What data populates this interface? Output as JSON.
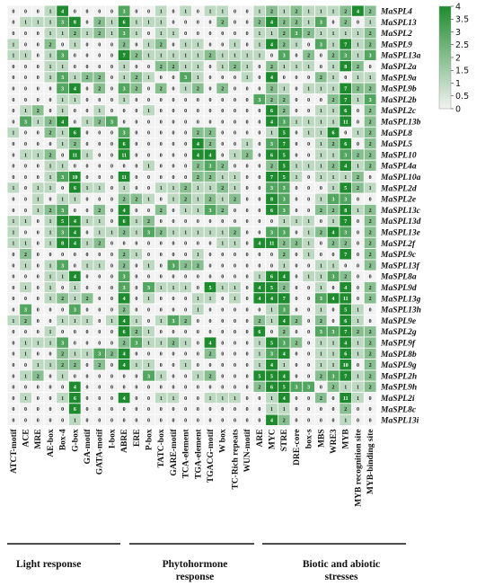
{
  "chart_data": {
    "type": "heatmap",
    "title": "",
    "rows": [
      "MaSPL4",
      "MaSPL13",
      "MaSPL2",
      "MaSPL9",
      "MaSPL13a",
      "MaSPL2a",
      "MaSPL9a",
      "MaSPL9b",
      "MaSPL2b",
      "MaSPL2c",
      "MaSPL13b",
      "MaSPL8",
      "MaSPL5",
      "MaSPL10",
      "MaSPL4a",
      "MaSPL10a",
      "MaSPL2d",
      "MaSPL2e",
      "MaSPL13c",
      "MaSPL13d",
      "MaSPL13e",
      "MaSPL2f",
      "MaSPL9c",
      "MaSPL13f",
      "MaSPL8a",
      "MaSPL9d",
      "MaSPL13g",
      "MaSPL13h",
      "MaSPL9e",
      "MaSPL2g",
      "MaSPL9f",
      "MaSPL8b",
      "MaSPL9g",
      "MaSPL2h",
      "MaSPL9h",
      "MaSPL2i",
      "MaSPL8c",
      "MaSPL13i"
    ],
    "columns": [
      "ATCT-motif",
      "ACE",
      "MRE",
      "AE-box",
      "Box-4",
      "G-box",
      "GA-motif",
      "GATA-motif",
      "I-box",
      "ABRE",
      "ERE",
      "P-box",
      "TATC-box",
      "GARE-motif",
      "TCA-element",
      "TGA-element",
      "TGACG-motif",
      "W box",
      "TC-Rich repeats",
      "WUN-motif",
      "ARE",
      "MYC",
      "STRE",
      "DRE-core",
      "box-s",
      "MBS",
      "WRE3",
      "MYB",
      "MYB recognition site",
      "MYB-binding site"
    ],
    "values": [
      [
        0,
        0,
        0,
        1,
        4,
        0,
        0,
        0,
        0,
        3,
        0,
        0,
        1,
        0,
        1,
        0,
        1,
        1,
        0,
        0,
        1,
        2,
        1,
        2,
        1,
        1,
        1,
        2,
        4,
        2
      ],
      [
        0,
        1,
        1,
        1,
        3,
        8,
        0,
        2,
        1,
        6,
        1,
        1,
        1,
        0,
        0,
        0,
        0,
        2,
        0,
        0,
        2,
        4,
        2,
        2,
        1,
        3,
        0,
        2,
        0,
        1
      ],
      [
        0,
        0,
        0,
        1,
        1,
        2,
        1,
        2,
        1,
        3,
        1,
        0,
        1,
        1,
        0,
        0,
        0,
        0,
        0,
        0,
        1,
        1,
        2,
        3,
        2,
        1,
        1,
        1,
        1,
        2
      ],
      [
        1,
        0,
        0,
        2,
        0,
        1,
        0,
        0,
        0,
        2,
        0,
        1,
        2,
        0,
        1,
        1,
        0,
        0,
        1,
        0,
        1,
        4,
        2,
        1,
        0,
        3,
        1,
        7,
        1,
        2
      ],
      [
        1,
        1,
        0,
        1,
        3,
        0,
        0,
        0,
        0,
        7,
        2,
        1,
        1,
        1,
        1,
        1,
        2,
        1,
        1,
        1,
        1,
        0,
        3,
        0,
        2,
        0,
        2,
        3,
        1,
        3
      ],
      [
        0,
        0,
        0,
        1,
        1,
        0,
        0,
        0,
        0,
        1,
        0,
        0,
        2,
        2,
        1,
        1,
        0,
        1,
        2,
        1,
        0,
        2,
        1,
        1,
        1,
        0,
        1,
        8,
        2,
        0
      ],
      [
        0,
        0,
        0,
        1,
        3,
        1,
        2,
        2,
        0,
        1,
        2,
        1,
        0,
        0,
        3,
        1,
        0,
        0,
        0,
        1,
        0,
        4,
        0,
        0,
        0,
        2,
        1,
        0,
        1,
        1
      ],
      [
        0,
        0,
        0,
        0,
        3,
        4,
        0,
        2,
        0,
        3,
        2,
        0,
        2,
        0,
        1,
        2,
        0,
        2,
        0,
        0,
        0,
        2,
        1,
        0,
        1,
        1,
        1,
        7,
        2,
        2
      ],
      [
        0,
        0,
        0,
        0,
        1,
        1,
        0,
        0,
        0,
        1,
        0,
        0,
        0,
        0,
        0,
        0,
        0,
        0,
        0,
        0,
        3,
        2,
        2,
        0,
        0,
        0,
        2,
        7,
        1,
        3
      ],
      [
        0,
        1,
        2,
        0,
        1,
        0,
        0,
        1,
        0,
        0,
        0,
        1,
        0,
        0,
        0,
        0,
        0,
        0,
        0,
        0,
        0,
        6,
        2,
        0,
        0,
        1,
        1,
        6,
        0,
        2
      ],
      [
        0,
        3,
        1,
        2,
        4,
        0,
        1,
        2,
        3,
        0,
        0,
        0,
        0,
        0,
        0,
        0,
        0,
        0,
        0,
        0,
        0,
        4,
        3,
        1,
        1,
        1,
        1,
        11,
        0,
        2
      ],
      [
        1,
        0,
        0,
        2,
        1,
        6,
        0,
        0,
        0,
        3,
        0,
        0,
        0,
        0,
        0,
        2,
        2,
        0,
        0,
        0,
        0,
        1,
        5,
        0,
        1,
        1,
        6,
        0,
        1,
        2
      ],
      [
        0,
        0,
        0,
        0,
        1,
        2,
        0,
        0,
        0,
        6,
        0,
        0,
        0,
        0,
        0,
        4,
        2,
        0,
        0,
        1,
        0,
        3,
        7,
        0,
        0,
        1,
        2,
        6,
        0,
        2
      ],
      [
        0,
        1,
        1,
        2,
        0,
        11,
        1,
        0,
        0,
        11,
        0,
        0,
        0,
        0,
        0,
        4,
        4,
        0,
        1,
        2,
        0,
        6,
        5,
        0,
        0,
        1,
        1,
        3,
        2,
        2
      ],
      [
        0,
        0,
        0,
        1,
        1,
        0,
        0,
        0,
        0,
        0,
        0,
        1,
        0,
        0,
        0,
        2,
        3,
        2,
        0,
        0,
        0,
        2,
        5,
        1,
        1,
        1,
        2,
        4,
        1,
        2
      ],
      [
        0,
        0,
        0,
        1,
        3,
        10,
        0,
        0,
        0,
        11,
        0,
        0,
        0,
        0,
        0,
        2,
        2,
        1,
        1,
        0,
        0,
        7,
        5,
        1,
        0,
        1,
        1,
        1,
        2,
        0
      ],
      [
        1,
        0,
        1,
        1,
        0,
        6,
        1,
        1,
        0,
        1,
        0,
        0,
        1,
        1,
        2,
        1,
        1,
        2,
        1,
        0,
        0,
        3,
        3,
        0,
        0,
        0,
        1,
        5,
        2,
        1
      ],
      [
        0,
        0,
        1,
        0,
        1,
        1,
        0,
        0,
        0,
        2,
        2,
        1,
        0,
        1,
        2,
        1,
        2,
        1,
        2,
        0,
        0,
        8,
        3,
        0,
        0,
        1,
        3,
        3,
        0,
        0
      ],
      [
        0,
        0,
        1,
        2,
        3,
        0,
        0,
        2,
        0,
        4,
        0,
        0,
        2,
        0,
        1,
        1,
        3,
        2,
        0,
        0,
        0,
        6,
        3,
        0,
        0,
        2,
        2,
        8,
        1,
        2
      ],
      [
        1,
        1,
        0,
        1,
        5,
        4,
        1,
        1,
        0,
        6,
        1,
        2,
        0,
        0,
        0,
        0,
        0,
        0,
        0,
        0,
        0,
        0,
        1,
        1,
        1,
        0,
        1,
        7,
        0,
        2
      ],
      [
        1,
        0,
        0,
        1,
        3,
        4,
        0,
        1,
        1,
        2,
        1,
        3,
        2,
        1,
        1,
        1,
        1,
        1,
        2,
        0,
        0,
        3,
        3,
        0,
        1,
        2,
        4,
        3,
        0,
        2
      ],
      [
        1,
        1,
        0,
        1,
        8,
        4,
        1,
        2,
        0,
        0,
        0,
        0,
        0,
        0,
        0,
        0,
        0,
        1,
        1,
        0,
        4,
        11,
        2,
        2,
        1,
        0,
        2,
        2,
        0,
        2
      ],
      [
        0,
        2,
        0,
        0,
        0,
        0,
        0,
        0,
        0,
        2,
        1,
        0,
        0,
        0,
        0,
        1,
        0,
        0,
        0,
        0,
        0,
        0,
        2,
        0,
        1,
        0,
        0,
        7,
        0,
        2
      ],
      [
        0,
        1,
        0,
        1,
        3,
        0,
        1,
        1,
        0,
        2,
        0,
        1,
        0,
        3,
        2,
        2,
        0,
        0,
        0,
        0,
        0,
        0,
        1,
        0,
        0,
        1,
        1,
        0,
        0,
        2
      ],
      [
        0,
        0,
        0,
        1,
        1,
        4,
        0,
        0,
        0,
        3,
        0,
        0,
        0,
        0,
        0,
        0,
        0,
        0,
        0,
        0,
        1,
        6,
        4,
        0,
        1,
        1,
        3,
        2,
        0,
        0
      ],
      [
        0,
        1,
        0,
        1,
        0,
        1,
        0,
        0,
        0,
        3,
        0,
        3,
        1,
        1,
        1,
        0,
        5,
        1,
        1,
        0,
        4,
        5,
        2,
        0,
        0,
        1,
        0,
        4,
        0,
        2
      ],
      [
        0,
        0,
        0,
        1,
        2,
        1,
        2,
        0,
        0,
        4,
        0,
        1,
        0,
        0,
        0,
        1,
        1,
        0,
        1,
        0,
        4,
        4,
        7,
        0,
        0,
        3,
        4,
        11,
        0,
        2
      ],
      [
        0,
        3,
        0,
        0,
        0,
        3,
        0,
        0,
        0,
        2,
        0,
        0,
        0,
        0,
        0,
        1,
        0,
        0,
        0,
        0,
        0,
        1,
        3,
        0,
        0,
        1,
        0,
        5,
        1,
        0
      ],
      [
        1,
        2,
        0,
        0,
        1,
        1,
        1,
        0,
        1,
        4,
        1,
        0,
        1,
        3,
        2,
        0,
        0,
        0,
        0,
        0,
        2,
        1,
        4,
        2,
        0,
        2,
        0,
        6,
        1,
        0
      ],
      [
        0,
        0,
        0,
        1,
        0,
        0,
        0,
        0,
        0,
        6,
        2,
        1,
        0,
        0,
        0,
        0,
        0,
        0,
        0,
        0,
        6,
        0,
        2,
        0,
        0,
        3,
        3,
        7,
        2,
        2
      ],
      [
        0,
        1,
        1,
        1,
        3,
        0,
        0,
        0,
        0,
        2,
        3,
        1,
        1,
        2,
        1,
        0,
        4,
        0,
        0,
        0,
        1,
        5,
        3,
        2,
        0,
        1,
        1,
        4,
        1,
        2
      ],
      [
        0,
        1,
        0,
        0,
        2,
        1,
        1,
        3,
        2,
        4,
        0,
        0,
        0,
        0,
        0,
        0,
        2,
        0,
        0,
        0,
        1,
        3,
        4,
        0,
        0,
        1,
        1,
        6,
        1,
        2
      ],
      [
        0,
        0,
        1,
        1,
        2,
        2,
        0,
        2,
        0,
        4,
        1,
        1,
        0,
        0,
        1,
        0,
        0,
        0,
        0,
        0,
        1,
        4,
        1,
        0,
        0,
        1,
        1,
        10,
        0,
        2
      ],
      [
        0,
        1,
        2,
        0,
        1,
        0,
        0,
        0,
        0,
        0,
        0,
        3,
        1,
        0,
        0,
        1,
        2,
        0,
        0,
        0,
        5,
        5,
        4,
        0,
        0,
        2,
        3,
        7,
        1,
        2
      ],
      [
        0,
        0,
        0,
        0,
        0,
        4,
        0,
        0,
        0,
        0,
        0,
        0,
        0,
        0,
        0,
        0,
        0,
        0,
        0,
        0,
        2,
        6,
        5,
        3,
        3,
        0,
        2,
        1,
        1,
        2
      ],
      [
        0,
        1,
        0,
        0,
        1,
        6,
        0,
        0,
        0,
        4,
        0,
        0,
        1,
        1,
        0,
        0,
        1,
        1,
        1,
        0,
        0,
        1,
        4,
        0,
        0,
        2,
        0,
        11,
        1,
        0
      ],
      [
        0,
        0,
        0,
        0,
        0,
        6,
        0,
        0,
        0,
        0,
        0,
        0,
        0,
        0,
        0,
        0,
        0,
        0,
        0,
        0,
        0,
        1,
        1,
        0,
        0,
        0,
        0,
        2,
        0,
        0
      ],
      [
        0,
        0,
        0,
        0,
        0,
        1,
        0,
        0,
        0,
        0,
        0,
        0,
        0,
        0,
        0,
        0,
        0,
        0,
        0,
        0,
        0,
        4,
        2,
        0,
        0,
        0,
        0,
        1,
        0,
        0
      ]
    ],
    "colorbar": {
      "min": 0,
      "max": 4,
      "ticks": [
        "4",
        "3.5",
        "3",
        "2.5",
        "2",
        "1.5",
        "1",
        "0.5",
        "0"
      ],
      "low_color": "#f2f2f2",
      "high_color": "#1e8c2e"
    },
    "groups": [
      {
        "label": "Light response",
        "start": 0,
        "end": 8
      },
      {
        "label": "Phytohormone response",
        "start": 9,
        "end": 19
      },
      {
        "label": "Biotic and abiotic stresses",
        "start": 20,
        "end": 29
      }
    ]
  }
}
